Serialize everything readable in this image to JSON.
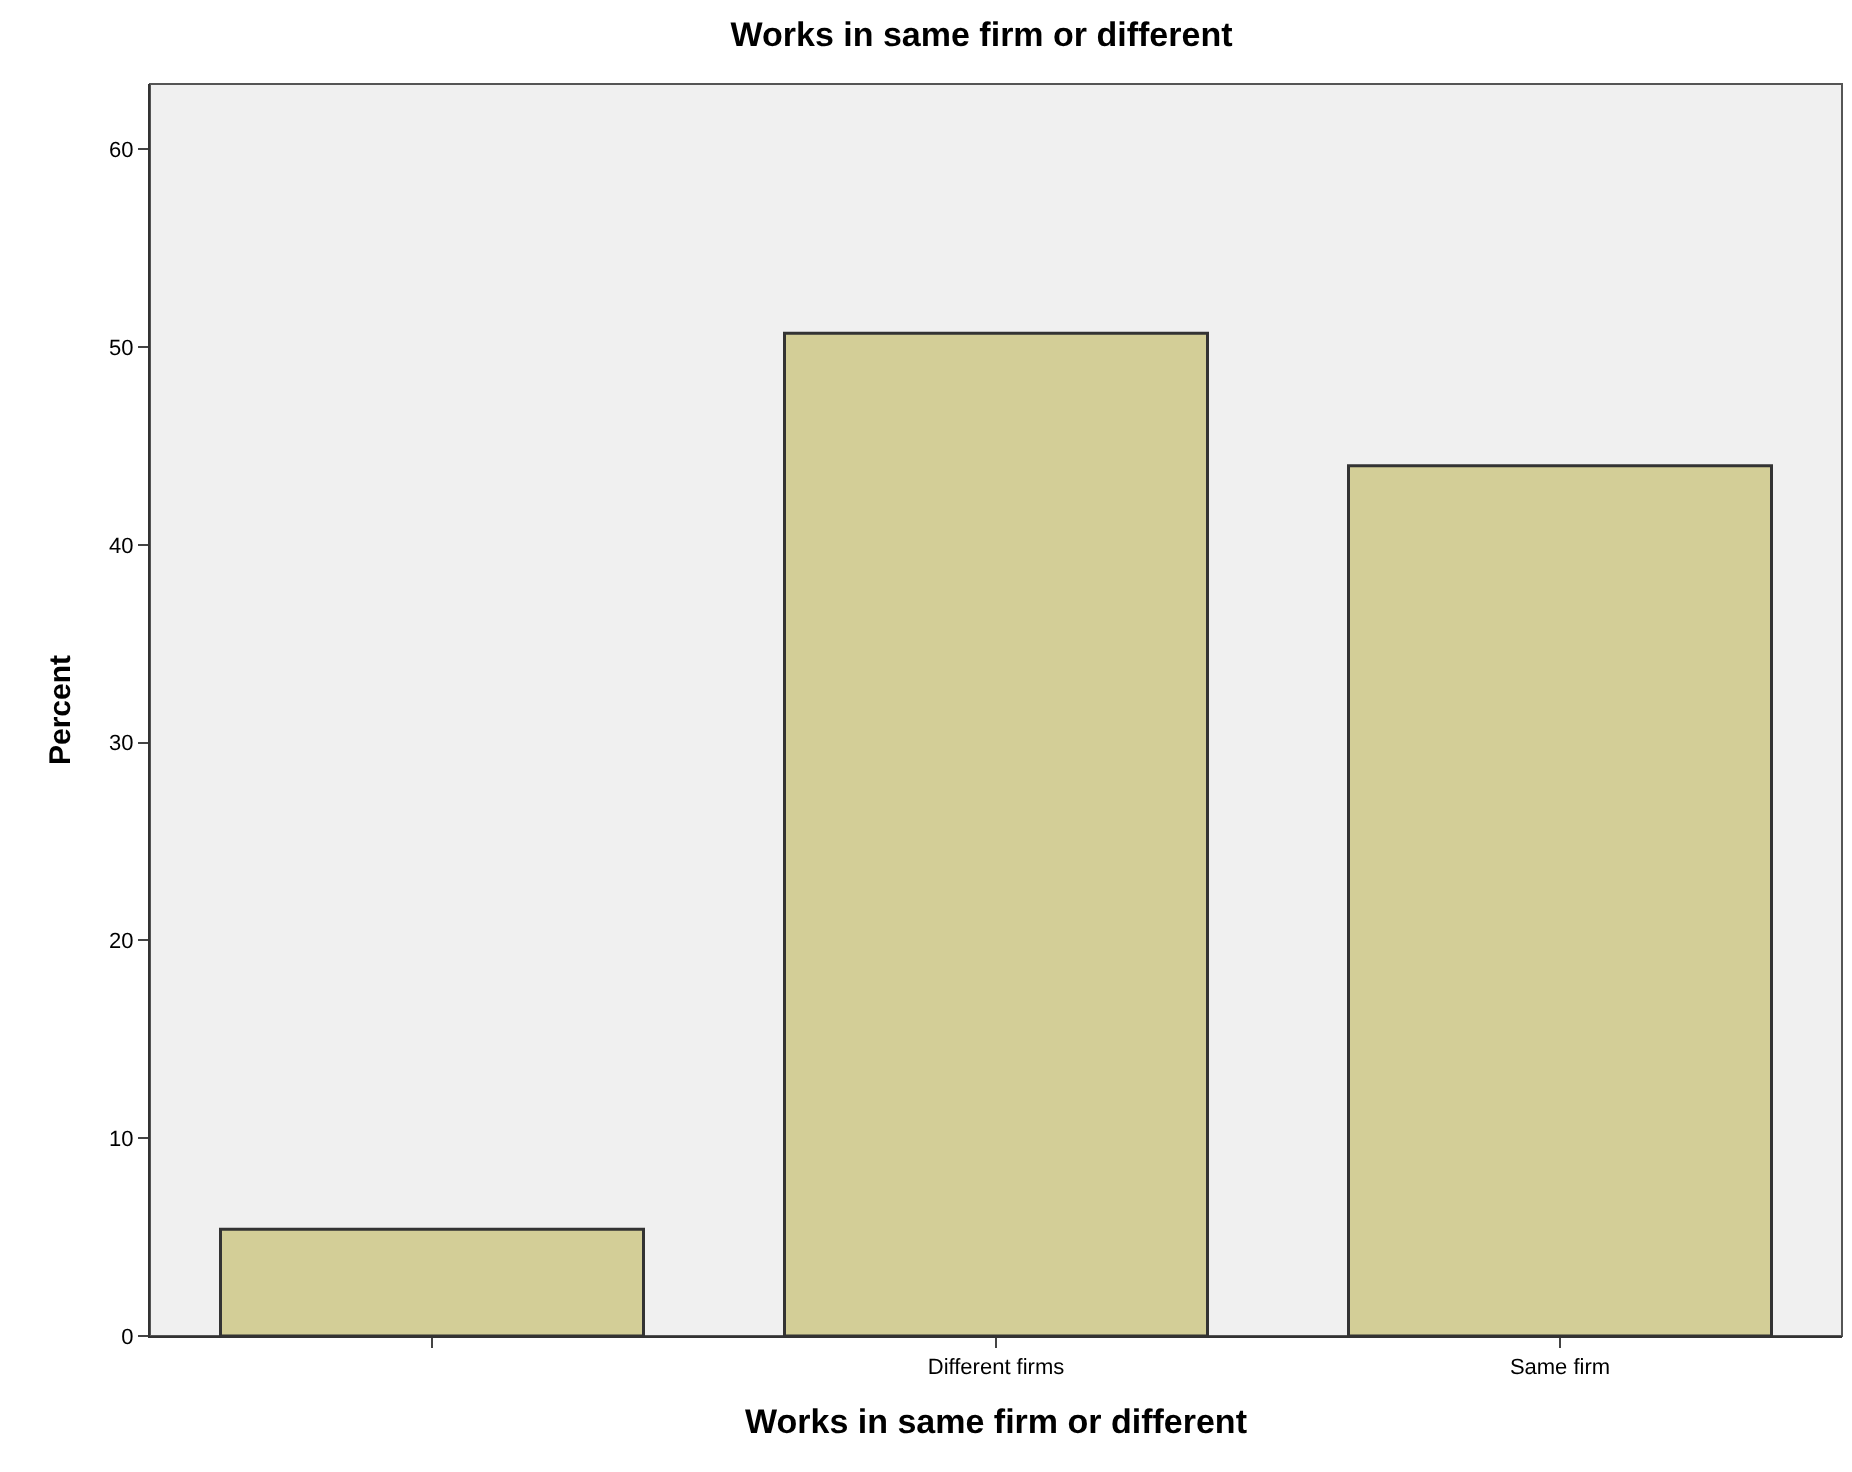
{
  "chart_data": {
    "type": "bar",
    "title": "Works in same firm or different",
    "xlabel": "Works in same firm or different",
    "ylabel": "Percent",
    "categories": [
      null,
      "Different firms",
      "Same firm"
    ],
    "values": [
      5.4,
      50.7,
      44.0
    ],
    "color": "#d3ce97",
    "ylim": [
      0,
      63.3
    ],
    "yticks": [
      0,
      10,
      20,
      30,
      40,
      50,
      60
    ],
    "grid": false,
    "legend": false
  }
}
